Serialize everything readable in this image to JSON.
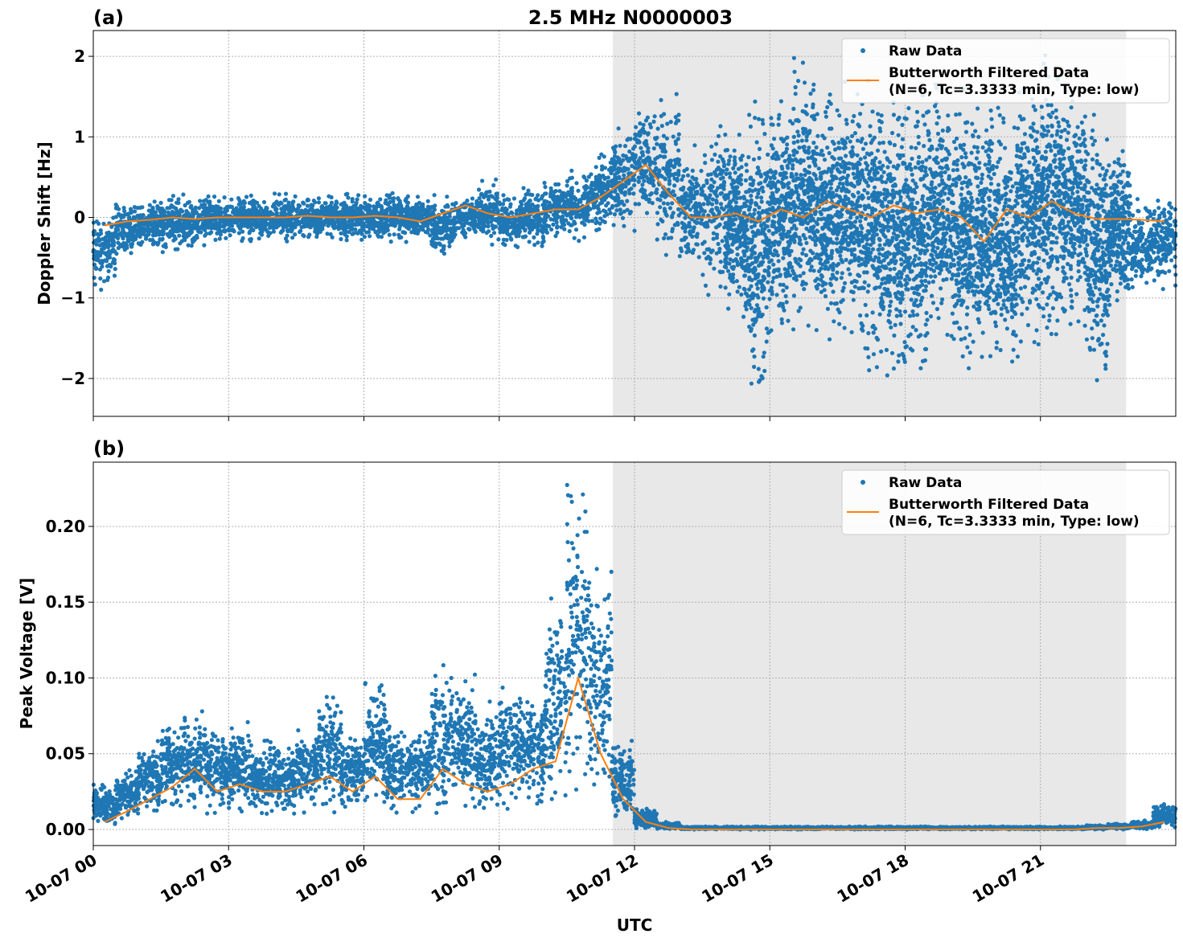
{
  "title": "2.5 MHz N0000003",
  "colors": {
    "raw": "#1f77b4",
    "filtered": "#ff7f0e",
    "shade": "#e8e8e8"
  },
  "chart_data": [
    {
      "type": "scatter",
      "panel_label": "(a)",
      "title": "2.5 MHz N0000003",
      "xlabel": "",
      "ylabel": "Doppler Shift [Hz]",
      "xlim_hours": [
        0,
        24
      ],
      "ylim": [
        -2.47,
        2.32
      ],
      "yticks": [
        2,
        1,
        0,
        -1,
        -2
      ],
      "ytick_labels": [
        "2",
        "1",
        "0",
        "−1",
        "−2"
      ],
      "shaded_hours": [
        11.52,
        22.9
      ],
      "grid": true,
      "legend_placement": "top-right",
      "legend": [
        "Raw Data",
        "Butterworth Filtered Data",
        "(N=6, Tc=3.3333 min, Type: low)"
      ],
      "bin_hours": 0.5,
      "raw_hi": [
        0.1,
        0.2,
        0.25,
        0.3,
        0.25,
        0.3,
        0.3,
        0.25,
        0.3,
        0.3,
        0.3,
        0.3,
        0.3,
        0.4,
        0.3,
        0.3,
        0.3,
        0.5,
        0.3,
        0.4,
        0.5,
        0.6,
        0.8,
        1.2,
        1.5,
        1.6,
        0.9,
        1.3,
        1.2,
        1.5,
        1.5,
        2.0,
        1.6,
        1.7,
        1.8,
        1.7,
        1.6,
        1.7,
        1.6,
        1.6,
        1.4,
        1.7,
        2.1,
        1.7,
        1.4,
        1.0,
        0.3,
        0.3
      ],
      "raw_lo": [
        -0.9,
        -0.5,
        -0.45,
        -0.45,
        -0.4,
        -0.35,
        -0.3,
        -0.3,
        -0.3,
        -0.3,
        -0.3,
        -0.3,
        -0.3,
        -0.35,
        -0.3,
        -0.5,
        -0.3,
        -0.35,
        -0.4,
        -0.4,
        -0.3,
        -0.3,
        -0.2,
        -0.2,
        -0.1,
        -0.6,
        -0.7,
        -1.0,
        -1.3,
        -2.2,
        -1.5,
        -1.4,
        -1.6,
        -1.5,
        -1.9,
        -2.2,
        -1.9,
        -1.5,
        -2.0,
        -2.0,
        -2.0,
        -1.6,
        -1.6,
        -1.4,
        -2.2,
        -1.2,
        -1.0,
        -0.9
      ],
      "filtered": [
        -0.1,
        -0.05,
        -0.03,
        0.0,
        -0.02,
        0.0,
        0.0,
        0.0,
        0.0,
        0.02,
        0.0,
        0.0,
        0.02,
        0.0,
        -0.05,
        0.05,
        0.15,
        0.05,
        0.0,
        0.05,
        0.1,
        0.1,
        0.25,
        0.45,
        0.65,
        0.3,
        0.0,
        0.0,
        0.05,
        -0.05,
        0.1,
        0.0,
        0.2,
        0.1,
        0.0,
        0.15,
        0.05,
        0.1,
        0.0,
        -0.3,
        0.1,
        0.0,
        0.2,
        0.05,
        -0.02,
        -0.02,
        -0.03,
        -0.05
      ]
    },
    {
      "type": "scatter",
      "panel_label": "(b)",
      "xlabel": "UTC",
      "ylabel": "Peak Voltage [V]",
      "xlim_hours": [
        0,
        24
      ],
      "ylim": [
        -0.0106,
        0.2424
      ],
      "yticks": [
        0.2,
        0.15,
        0.1,
        0.05,
        0.0
      ],
      "ytick_labels": [
        "0.20",
        "0.15",
        "0.10",
        "0.05",
        "0.00"
      ],
      "xtick_hours": [
        0,
        3,
        6,
        9,
        12,
        15,
        18,
        21
      ],
      "xtick_labels": [
        "10-07 00",
        "10-07 03",
        "10-07 06",
        "10-07 09",
        "10-07 12",
        "10-07 15",
        "10-07 18",
        "10-07 21"
      ],
      "shaded_hours": [
        11.52,
        22.9
      ],
      "grid": true,
      "legend_placement": "top-right",
      "legend": [
        "Raw Data",
        "Butterworth Filtered Data",
        "(N=6, Tc=3.3333 min, Type: low)"
      ],
      "bin_hours": 0.5,
      "raw_hi": [
        0.03,
        0.04,
        0.06,
        0.078,
        0.078,
        0.07,
        0.072,
        0.06,
        0.06,
        0.07,
        0.095,
        0.065,
        0.1,
        0.07,
        0.07,
        0.11,
        0.107,
        0.085,
        0.1,
        0.09,
        0.155,
        0.23,
        0.18,
        0.06,
        0.015,
        0.005,
        0.002,
        0.002,
        0.002,
        0.002,
        0.002,
        0.002,
        0.002,
        0.002,
        0.002,
        0.002,
        0.002,
        0.002,
        0.002,
        0.002,
        0.002,
        0.002,
        0.002,
        0.002,
        0.003,
        0.004,
        0.006,
        0.018
      ],
      "raw_lo": [
        0,
        0.005,
        0.008,
        0.01,
        0.01,
        0.01,
        0.01,
        0.008,
        0.01,
        0.01,
        0.01,
        0.01,
        0.01,
        0.01,
        0.01,
        0.01,
        0.01,
        0.01,
        0.01,
        0.01,
        0.01,
        0.01,
        0.01,
        0.005,
        0,
        0,
        0,
        0,
        0,
        0,
        0,
        0,
        0,
        0,
        0,
        0,
        0,
        0,
        0,
        0,
        0,
        0,
        0,
        0,
        0,
        0,
        0,
        0
      ],
      "filtered": [
        0.005,
        0.012,
        0.02,
        0.028,
        0.04,
        0.025,
        0.03,
        0.025,
        0.025,
        0.03,
        0.035,
        0.025,
        0.035,
        0.02,
        0.02,
        0.04,
        0.03,
        0.025,
        0.03,
        0.04,
        0.045,
        0.1,
        0.05,
        0.02,
        0.005,
        0.001,
        0,
        0,
        0,
        0,
        0,
        0,
        0,
        0,
        0,
        0,
        0,
        0,
        0,
        0,
        0,
        0,
        0,
        0,
        0.001,
        0.001,
        0.002,
        0.005
      ]
    }
  ]
}
